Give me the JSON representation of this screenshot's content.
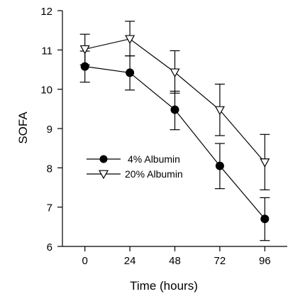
{
  "chart_data": {
    "type": "line",
    "xlabel": "Time (hours)",
    "ylabel": "SOFA",
    "x": [
      0,
      24,
      48,
      72,
      96
    ],
    "xlim": [
      -12,
      108
    ],
    "ylim": [
      6,
      12
    ],
    "xticks": [
      "0",
      "24",
      "48",
      "72",
      "96"
    ],
    "yticks": [
      "6",
      "7",
      "8",
      "9",
      "10",
      "11",
      "12"
    ],
    "grid": false,
    "legend_position": "lower-left",
    "series": [
      {
        "name": "4% Albumin",
        "marker": "filled-circle",
        "values": [
          10.58,
          10.42,
          9.48,
          8.05,
          6.7
        ],
        "error_upper": [
          10.97,
          10.85,
          9.95,
          8.62,
          7.24
        ],
        "error_lower": [
          10.18,
          9.98,
          8.97,
          7.47,
          6.15
        ]
      },
      {
        "name": "20% Albumin",
        "marker": "open-triangle-down",
        "values": [
          11.02,
          11.28,
          10.43,
          9.47,
          8.14
        ],
        "error_upper": [
          11.4,
          11.73,
          10.98,
          10.13,
          8.85
        ],
        "error_lower": [
          10.62,
          10.85,
          9.9,
          8.82,
          7.44
        ]
      }
    ]
  }
}
